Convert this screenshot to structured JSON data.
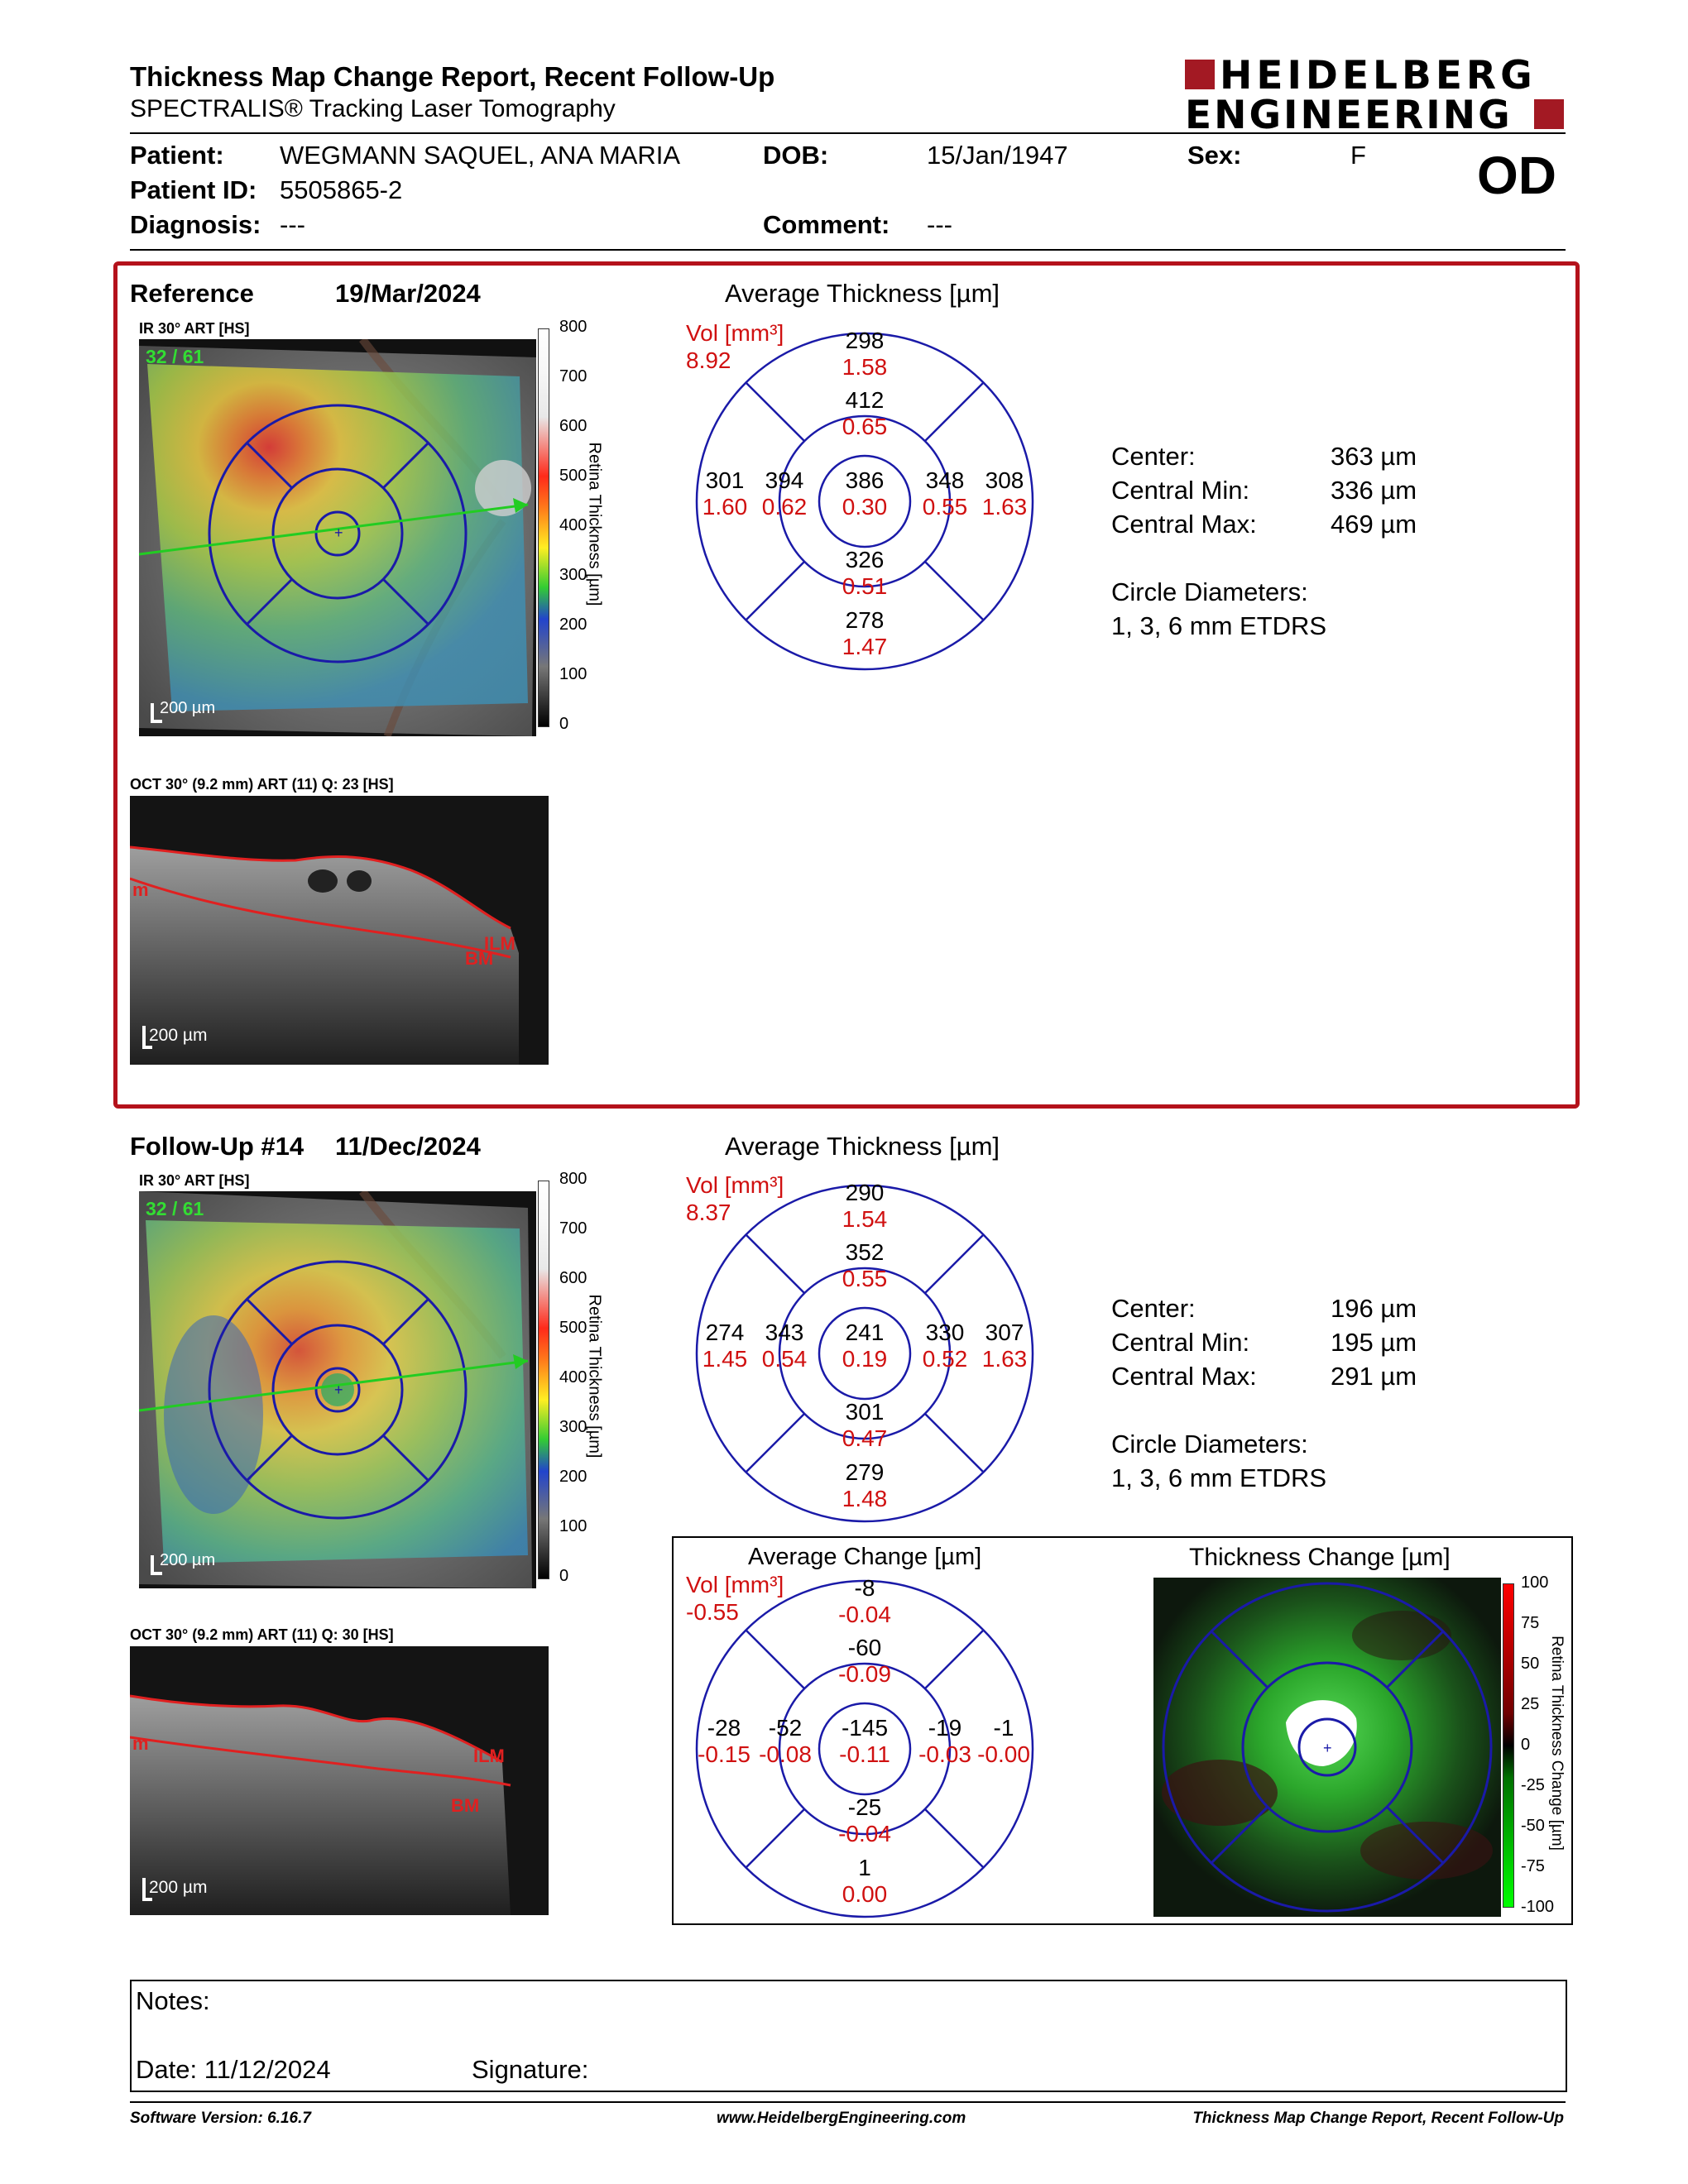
{
  "header": {
    "title": "Thickness Map Change Report, Recent Follow-Up",
    "subtitle": "SPECTRALIS® Tracking Laser Tomography",
    "logo_line1": "HEIDELBERG",
    "logo_line2": "ENGINEERING"
  },
  "patient": {
    "patient_label": "Patient:",
    "patient_value": "WEGMANN SAQUEL, ANA MARIA",
    "dob_label": "DOB:",
    "dob_value": "15/Jan/1947",
    "sex_label": "Sex:",
    "sex_value": "F",
    "eye": "OD",
    "id_label": "Patient ID:",
    "id_value": "5505865-2",
    "diagnosis_label": "Diagnosis:",
    "diagnosis_value": "---",
    "comment_label": "Comment:",
    "comment_value": "---"
  },
  "reference": {
    "label": "Reference",
    "date": "19/Mar/2024",
    "ir_label": "IR 30° ART [HS]",
    "frame_count": "32 / 61",
    "scale_text": "200 µm",
    "colorbar_ticks": [
      "800",
      "700",
      "600",
      "500",
      "400",
      "300",
      "200",
      "100",
      "0"
    ],
    "colorbar_title": "Retina Thickness [µm]",
    "oct_label": "OCT 30° (9.2 mm) ART (11) Q: 23 [HS]",
    "oct_scale": "200 µm",
    "oct_ilm": "ILM",
    "oct_bm": "BM",
    "oct_left_mark": "m",
    "avg_title": "Average Thickness [µm]",
    "vol_label": "Vol [mm³]",
    "vol_total": "8.92",
    "grid": {
      "center": [
        "386",
        "0.30"
      ],
      "inner_sup": [
        "412",
        "0.65"
      ],
      "inner_nas": [
        "348",
        "0.55"
      ],
      "inner_inf": [
        "326",
        "0.51"
      ],
      "inner_tem": [
        "394",
        "0.62"
      ],
      "outer_sup": [
        "298",
        "1.58"
      ],
      "outer_nas": [
        "308",
        "1.63"
      ],
      "outer_inf": [
        "278",
        "1.47"
      ],
      "outer_tem": [
        "301",
        "1.60"
      ]
    },
    "stats": [
      {
        "label": "Center:",
        "value": "363 µm"
      },
      {
        "label": "Central Min:",
        "value": "336 µm"
      },
      {
        "label": "Central Max:",
        "value": "469 µm"
      }
    ],
    "circle_label": "Circle Diameters:",
    "circle_value": "1, 3, 6 mm ETDRS"
  },
  "followup": {
    "label": "Follow-Up #14",
    "date": "11/Dec/2024",
    "ir_label": "IR 30° ART [HS]",
    "frame_count": "32 / 61",
    "scale_text": "200 µm",
    "colorbar_ticks": [
      "800",
      "700",
      "600",
      "500",
      "400",
      "300",
      "200",
      "100",
      "0"
    ],
    "colorbar_title": "Retina Thickness [µm]",
    "oct_label": "OCT 30° (9.2 mm) ART (11) Q: 30 [HS]",
    "oct_scale": "200 µm",
    "oct_ilm": "ILM",
    "oct_bm": "BM",
    "oct_left_mark": "m",
    "avg_title": "Average Thickness [µm]",
    "vol_label": "Vol [mm³]",
    "vol_total": "8.37",
    "grid": {
      "center": [
        "241",
        "0.19"
      ],
      "inner_sup": [
        "352",
        "0.55"
      ],
      "inner_nas": [
        "330",
        "0.52"
      ],
      "inner_inf": [
        "301",
        "0.47"
      ],
      "inner_tem": [
        "343",
        "0.54"
      ],
      "outer_sup": [
        "290",
        "1.54"
      ],
      "outer_nas": [
        "307",
        "1.63"
      ],
      "outer_inf": [
        "279",
        "1.48"
      ],
      "outer_tem": [
        "274",
        "1.45"
      ]
    },
    "stats": [
      {
        "label": "Center:",
        "value": "196 µm"
      },
      {
        "label": "Central Min:",
        "value": "195 µm"
      },
      {
        "label": "Central Max:",
        "value": "291 µm"
      }
    ],
    "circle_label": "Circle Diameters:",
    "circle_value": "1, 3, 6 mm ETDRS"
  },
  "change": {
    "avg_title": "Average Change [µm]",
    "vol_label": "Vol [mm³]",
    "vol_total": "-0.55",
    "grid": {
      "center": [
        "-145",
        "-0.11"
      ],
      "inner_sup": [
        "-60",
        "-0.09"
      ],
      "inner_nas": [
        "-19",
        "-0.03"
      ],
      "inner_inf": [
        "-25",
        "-0.04"
      ],
      "inner_tem": [
        "-52",
        "-0.08"
      ],
      "outer_sup": [
        "-8",
        "-0.04"
      ],
      "outer_nas": [
        "-1",
        "-0.00"
      ],
      "outer_inf": [
        "1",
        "0.00"
      ],
      "outer_tem": [
        "-28",
        "-0.15"
      ]
    },
    "map_title": "Thickness Change [µm]",
    "colorbar_ticks": [
      "100",
      "75",
      "50",
      "25",
      "0",
      "-25",
      "-50",
      "-75",
      "-100"
    ],
    "colorbar_title": "Retina Thickness Change [µm]"
  },
  "notes": {
    "notes_label": "Notes:",
    "date_label": "Date: 11/12/2024",
    "signature_label": "Signature:"
  },
  "footer": {
    "software": "Software Version: 6.16.7",
    "website": "www.HeidelbergEngineering.com",
    "report_name": "Thickness Map Change Report, Recent Follow-Up"
  },
  "colors": {
    "frame_red": "#b4121b",
    "grid_blue": "#1a1aa8",
    "value_red": "#d01010",
    "logo_red": "#a31923"
  }
}
